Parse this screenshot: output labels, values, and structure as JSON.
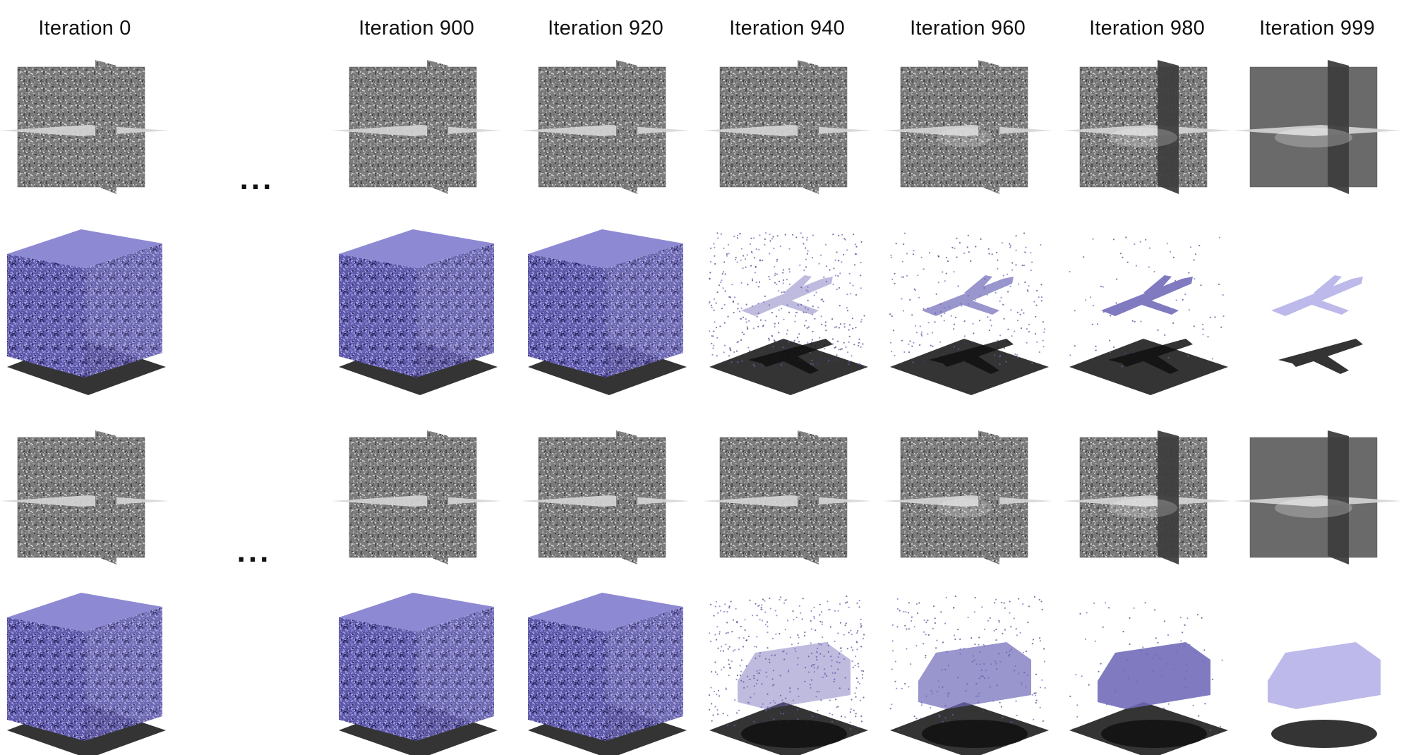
{
  "columns": [
    {
      "label": "Iteration 0",
      "progress": 0.0
    },
    {
      "label": "Iteration 900",
      "progress": 0.0
    },
    {
      "label": "Iteration 920",
      "progress": 0.2
    },
    {
      "label": "Iteration 940",
      "progress": 0.45
    },
    {
      "label": "Iteration 960",
      "progress": 0.7
    },
    {
      "label": "Iteration 980",
      "progress": 0.88
    },
    {
      "label": "Iteration 999",
      "progress": 1.0
    }
  ],
  "ellipsis": "...",
  "rows": [
    {
      "kind": "slices",
      "object": "airplane"
    },
    {
      "kind": "points",
      "object": "airplane"
    },
    {
      "kind": "slices",
      "object": "van"
    },
    {
      "kind": "points",
      "object": "van"
    }
  ],
  "colors": {
    "points": "#6e68b8",
    "points_dark": "#3f3a7a",
    "solid": "#bdb9ea",
    "noise": "#808080"
  }
}
